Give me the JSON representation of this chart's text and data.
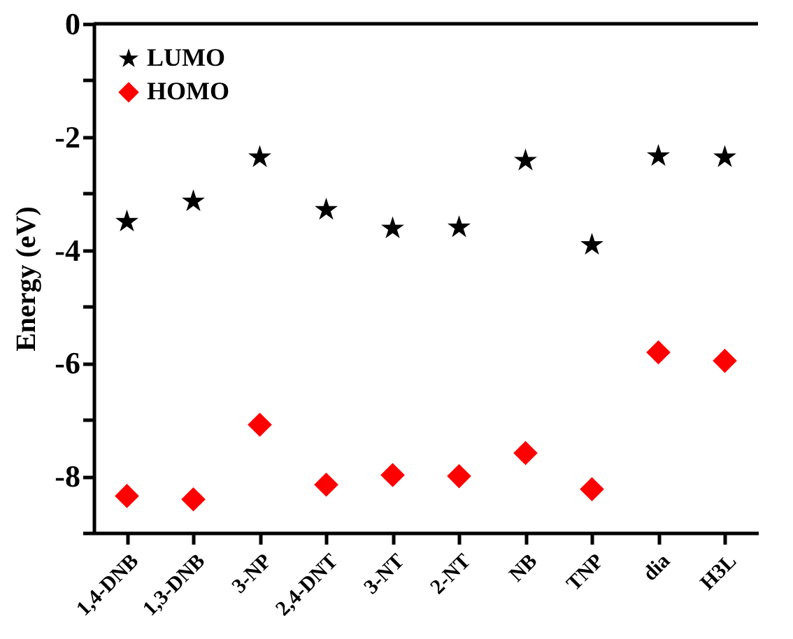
{
  "chart_data": {
    "type": "scatter",
    "ylabel": "Energy (eV)",
    "categories": [
      "1,4-DNB",
      "1,3-DNB",
      "3-NP",
      "2,4-DNT",
      "3-NT",
      "2-NT",
      "NB",
      "TNP",
      "dia",
      "H3L"
    ],
    "series": [
      {
        "name": "LUMO",
        "color": "#000000",
        "marker": "star",
        "values": [
          -3.5,
          -3.14,
          -2.36,
          -3.29,
          -3.62,
          -3.6,
          -2.42,
          -3.91,
          -2.34,
          -2.36
        ]
      },
      {
        "name": "HOMO",
        "color": "#ff0000",
        "marker": "diamond",
        "values": [
          -8.35,
          -8.41,
          -7.09,
          -8.15,
          -7.98,
          -8.0,
          -7.59,
          -8.23,
          -5.81,
          -5.96
        ]
      }
    ],
    "ylim": [
      -9,
      0
    ],
    "yticks": [
      {
        "value": -9,
        "label": null
      },
      -8,
      {
        "value": -7,
        "label": null
      },
      -6,
      {
        "value": -5,
        "label": null
      },
      -4,
      {
        "value": -3,
        "label": null
      },
      -2,
      {
        "value": -1,
        "label": null
      },
      0
    ],
    "grid": false,
    "legend": "top left"
  }
}
